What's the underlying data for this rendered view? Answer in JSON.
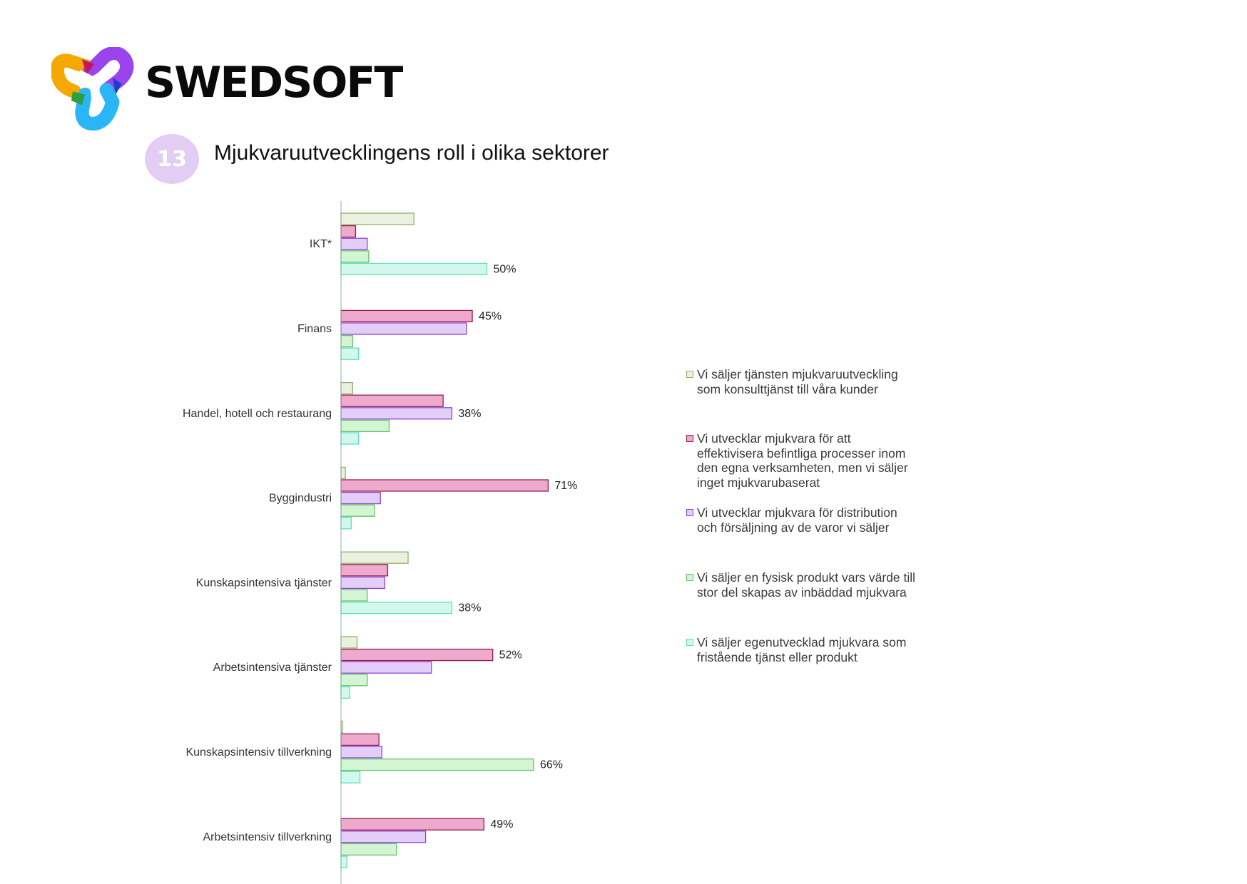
{
  "brand": {
    "name": "SWEDSOFT"
  },
  "header": {
    "badge_number": "13",
    "title": "Mjukvaruutvecklingens roll i olika sektorer"
  },
  "colors": {
    "badge": "#e3cdf5",
    "logo": [
      "#f5a800",
      "#c2185b",
      "#8e44ec",
      "#1565c0",
      "#2e9e3e",
      "#29b6f6"
    ]
  },
  "chart_data": {
    "type": "bar",
    "orientation": "horizontal",
    "categories": [
      "IKT*",
      "Finans",
      "Handel, hotell och restaurang",
      "Byggindustri",
      "Kunskapsintensiva tjänster",
      "Arbetsintensiva tjänster",
      "Kunskapsintensiv tillverkning",
      "Arbetsintensiv tillverkning"
    ],
    "series": [
      {
        "name": "Vi säljer tjänsten mjukvaruutveckling som konsulttjänst till våra kunder",
        "fill": "#ebf1de",
        "stroke": "#8fb070",
        "values": [
          25,
          0,
          4,
          1.5,
          23,
          5.5,
          0.5,
          0
        ]
      },
      {
        "name": "Vi utvecklar mjukvara för att effektivisera befintliga processer inom den egna verksamheten, men vi säljer inget mjukvarubaserat",
        "fill": "#eeaacc",
        "stroke": "#9b1c4e",
        "values": [
          5,
          45,
          35,
          71,
          16,
          52,
          13,
          49
        ]
      },
      {
        "name": "Vi utvecklar mjukvara för  distribution och försäljning av de varor vi säljer",
        "fill": "#e2cef8",
        "stroke": "#8e44d8",
        "values": [
          9,
          43,
          38,
          13.5,
          15,
          31,
          14,
          29
        ]
      },
      {
        "name": "Vi säljer en fysisk produkt vars värde till stor del skapas av inbäddad mjukvara",
        "fill": "#d4f5d4",
        "stroke": "#66c166",
        "values": [
          9.5,
          4,
          16.5,
          11.5,
          9,
          9,
          66,
          19
        ]
      },
      {
        "name": "Vi säljer egenutvecklad mjukvara som fristående tjänst eller produkt",
        "fill": "#d2f8ee",
        "stroke": "#5ee0c0",
        "values": [
          50,
          6,
          6,
          3.5,
          38,
          3,
          6.5,
          2
        ]
      }
    ],
    "data_labels": [
      {
        "category": "IKT*",
        "series": 4,
        "text": "50%"
      },
      {
        "category": "Finans",
        "series": 1,
        "text": "45%"
      },
      {
        "category": "Handel, hotell och restaurang",
        "series": 2,
        "text": "38%"
      },
      {
        "category": "Byggindustri",
        "series": 1,
        "text": "71%"
      },
      {
        "category": "Kunskapsintensiva tjänster",
        "series": 4,
        "text": "38%"
      },
      {
        "category": "Arbetsintensiva tjänster",
        "series": 1,
        "text": "52%"
      },
      {
        "category": "Kunskapsintensiv tillverkning",
        "series": 3,
        "text": "66%"
      },
      {
        "category": "Arbetsintensiv tillverkning",
        "series": 1,
        "text": "49%"
      }
    ],
    "xlim": [
      0,
      100
    ],
    "xlabel": "",
    "ylabel": "",
    "grid": false,
    "legend_position": "right"
  },
  "legend": {
    "items": [
      {
        "text": "Vi säljer tjänsten mjukvaruutveckling\nsom konsulttjänst till våra kunder"
      },
      {
        "text": "Vi utvecklar mjukvara för att\neffektivisera befintliga processer inom\nden egna verksamheten, men vi säljer\ninget mjukvarubaserat"
      },
      {
        "text": "Vi utvecklar mjukvara för  distribution\noch försäljning av de varor vi säljer"
      },
      {
        "text": "Vi säljer en fysisk produkt vars värde till\nstor del skapas av inbäddad mjukvara"
      },
      {
        "text": "Vi säljer egenutvecklad mjukvara som\nfristående tjänst eller produkt"
      }
    ]
  }
}
